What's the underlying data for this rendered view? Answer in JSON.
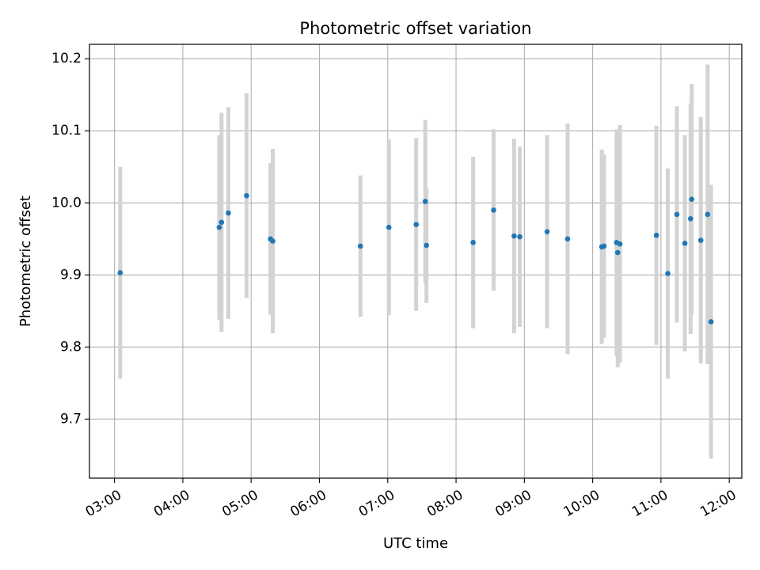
{
  "chart_data": {
    "type": "scatter",
    "title": "Photometric offset variation",
    "xlabel": "UTC time",
    "ylabel": "Photometric offset",
    "xlim": [
      "02:38",
      "12:11"
    ],
    "ylim": [
      9.618,
      10.22
    ],
    "grid": true,
    "x_tick_labels": [
      "03:00",
      "04:00",
      "05:00",
      "06:00",
      "07:00",
      "08:00",
      "09:00",
      "10:00",
      "11:00",
      "12:00"
    ],
    "y_tick_values": [
      9.7,
      9.8,
      9.9,
      10.0,
      10.1,
      10.2
    ],
    "y_tick_labels": [
      "9.7",
      "9.8",
      "9.9",
      "10.0",
      "10.1",
      "10.2"
    ],
    "colors": {
      "point": "#1f77b4",
      "errorbar": "#d3d3d3",
      "grid": "#b0b0b0"
    },
    "points": [
      {
        "t": "03:05",
        "y": 9.903,
        "err": 0.147
      },
      {
        "t": "04:32",
        "y": 9.966,
        "err": 0.128
      },
      {
        "t": "04:34",
        "y": 9.973,
        "err": 0.152
      },
      {
        "t": "04:40",
        "y": 9.986,
        "err": 0.147
      },
      {
        "t": "04:56",
        "y": 10.01,
        "err": 0.142
      },
      {
        "t": "05:17",
        "y": 9.95,
        "err": 0.105
      },
      {
        "t": "05:19",
        "y": 9.947,
        "err": 0.128
      },
      {
        "t": "06:36",
        "y": 9.94,
        "err": 0.098
      },
      {
        "t": "07:01",
        "y": 9.966,
        "err": 0.122
      },
      {
        "t": "07:25",
        "y": 9.97,
        "err": 0.12
      },
      {
        "t": "07:33",
        "y": 10.002,
        "err": 0.113
      },
      {
        "t": "07:34",
        "y": 9.941,
        "err": 0.08
      },
      {
        "t": "08:15",
        "y": 9.945,
        "err": 0.119
      },
      {
        "t": "08:33",
        "y": 9.99,
        "err": 0.112
      },
      {
        "t": "08:51",
        "y": 9.954,
        "err": 0.135
      },
      {
        "t": "08:56",
        "y": 9.953,
        "err": 0.125
      },
      {
        "t": "09:20",
        "y": 9.96,
        "err": 0.134
      },
      {
        "t": "09:38",
        "y": 9.95,
        "err": 0.16
      },
      {
        "t": "10:08",
        "y": 9.939,
        "err": 0.135
      },
      {
        "t": "10:10",
        "y": 9.94,
        "err": 0.127
      },
      {
        "t": "10:21",
        "y": 9.945,
        "err": 0.157
      },
      {
        "t": "10:22",
        "y": 9.931,
        "err": 0.159
      },
      {
        "t": "10:24",
        "y": 9.943,
        "err": 0.165
      },
      {
        "t": "10:56",
        "y": 9.955,
        "err": 0.152
      },
      {
        "t": "11:06",
        "y": 9.902,
        "err": 0.146
      },
      {
        "t": "11:14",
        "y": 9.984,
        "err": 0.15
      },
      {
        "t": "11:21",
        "y": 9.944,
        "err": 0.15
      },
      {
        "t": "11:26",
        "y": 9.978,
        "err": 0.16
      },
      {
        "t": "11:27",
        "y": 10.005,
        "err": 0.16
      },
      {
        "t": "11:35",
        "y": 9.948,
        "err": 0.171
      },
      {
        "t": "11:41",
        "y": 9.984,
        "err": 0.208
      },
      {
        "t": "11:44",
        "y": 9.835,
        "err": 0.19
      }
    ]
  }
}
